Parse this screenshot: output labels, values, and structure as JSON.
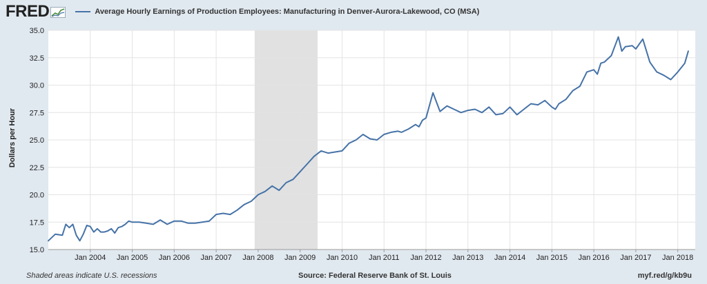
{
  "header": {
    "logo": "FRED",
    "logo_icon": "chart-line-icon",
    "legend_label": "Average Hourly Earnings of Production Employees: Manufacturing in Denver-Aurora-Lakewood, CO (MSA)"
  },
  "footer": {
    "note": "Shaded areas indicate U.S. recessions",
    "source": "Source: Federal Reserve Bank of St. Louis",
    "url": "myf.red/g/kb9u"
  },
  "colors": {
    "series": "#4572a7",
    "recession": "#e1e1e1",
    "plot_bg": "#ffffff",
    "page_bg": "#e1e9f0",
    "grid": "#e3e3e3"
  },
  "chart_data": {
    "type": "line",
    "ylabel": "Dollars per Hour",
    "ylim": [
      15.0,
      35.0
    ],
    "y_ticks": [
      "15.0",
      "17.5",
      "20.0",
      "22.5",
      "25.0",
      "27.5",
      "30.0",
      "32.5",
      "35.0"
    ],
    "xlim": [
      "2003-01",
      "2018-06"
    ],
    "x_ticks": [
      "Jan 2004",
      "Jan 2005",
      "Jan 2006",
      "Jan 2007",
      "Jan 2008",
      "Jan 2009",
      "Jan 2010",
      "Jan 2011",
      "Jan 2012",
      "Jan 2013",
      "Jan 2014",
      "Jan 2015",
      "Jan 2016",
      "Jan 2017",
      "Jan 2018"
    ],
    "grid": true,
    "recessions": [
      [
        "2007-12",
        "2009-06"
      ]
    ],
    "series": [
      {
        "name": "Average Hourly Earnings of Production Employees: Manufacturing in Denver-Aurora-Lakewood, CO (MSA)",
        "x": [
          "2003-01",
          "2003-03",
          "2003-05",
          "2003-06",
          "2003-07",
          "2003-08",
          "2003-09",
          "2003-10",
          "2003-11",
          "2003-12",
          "2004-01",
          "2004-02",
          "2004-03",
          "2004-04",
          "2004-05",
          "2004-06",
          "2004-07",
          "2004-08",
          "2004-09",
          "2004-10",
          "2004-11",
          "2004-12",
          "2005-01",
          "2005-03",
          "2005-05",
          "2005-07",
          "2005-09",
          "2005-11",
          "2006-01",
          "2006-03",
          "2006-05",
          "2006-07",
          "2006-09",
          "2006-11",
          "2007-01",
          "2007-03",
          "2007-05",
          "2007-07",
          "2007-09",
          "2007-11",
          "2008-01",
          "2008-03",
          "2008-05",
          "2008-07",
          "2008-09",
          "2008-11",
          "2009-01",
          "2009-03",
          "2009-05",
          "2009-07",
          "2009-09",
          "2009-11",
          "2010-01",
          "2010-03",
          "2010-05",
          "2010-07",
          "2010-09",
          "2010-11",
          "2011-01",
          "2011-03",
          "2011-05",
          "2011-06",
          "2011-08",
          "2011-10",
          "2011-11",
          "2011-12",
          "2012-01",
          "2012-03",
          "2012-05",
          "2012-07",
          "2012-09",
          "2012-11",
          "2013-01",
          "2013-03",
          "2013-05",
          "2013-07",
          "2013-09",
          "2013-11",
          "2014-01",
          "2014-03",
          "2014-05",
          "2014-07",
          "2014-09",
          "2014-11",
          "2015-01",
          "2015-02",
          "2015-03",
          "2015-05",
          "2015-07",
          "2015-09",
          "2015-11",
          "2016-01",
          "2016-02",
          "2016-03",
          "2016-04",
          "2016-06",
          "2016-08",
          "2016-09",
          "2016-10",
          "2016-12",
          "2017-01",
          "2017-03",
          "2017-05",
          "2017-07",
          "2017-09",
          "2017-11",
          "2018-01",
          "2018-03",
          "2018-04"
        ],
        "y": [
          15.8,
          16.4,
          16.3,
          17.3,
          17.0,
          17.3,
          16.3,
          15.8,
          16.4,
          17.2,
          17.1,
          16.6,
          16.9,
          16.6,
          16.6,
          16.7,
          16.9,
          16.5,
          17.0,
          17.1,
          17.3,
          17.6,
          17.5,
          17.5,
          17.4,
          17.3,
          17.7,
          17.3,
          17.6,
          17.6,
          17.4,
          17.4,
          17.5,
          17.6,
          18.2,
          18.3,
          18.2,
          18.6,
          19.1,
          19.4,
          20.0,
          20.3,
          20.8,
          20.4,
          21.1,
          21.4,
          22.1,
          22.8,
          23.5,
          24.0,
          23.8,
          23.9,
          24.0,
          24.7,
          25.0,
          25.5,
          25.1,
          25.0,
          25.5,
          25.7,
          25.8,
          25.7,
          26.0,
          26.4,
          26.2,
          26.8,
          27.0,
          29.3,
          27.6,
          28.1,
          27.8,
          27.5,
          27.7,
          27.8,
          27.5,
          28.0,
          27.3,
          27.4,
          28.0,
          27.3,
          27.8,
          28.3,
          28.2,
          28.6,
          28.0,
          27.8,
          28.3,
          28.7,
          29.5,
          29.9,
          31.2,
          31.4,
          31.0,
          32.0,
          32.1,
          32.7,
          34.4,
          33.1,
          33.5,
          33.6,
          33.3,
          34.2,
          32.1,
          31.2,
          30.9,
          30.5,
          31.2,
          32.0,
          33.1
        ]
      }
    ]
  }
}
